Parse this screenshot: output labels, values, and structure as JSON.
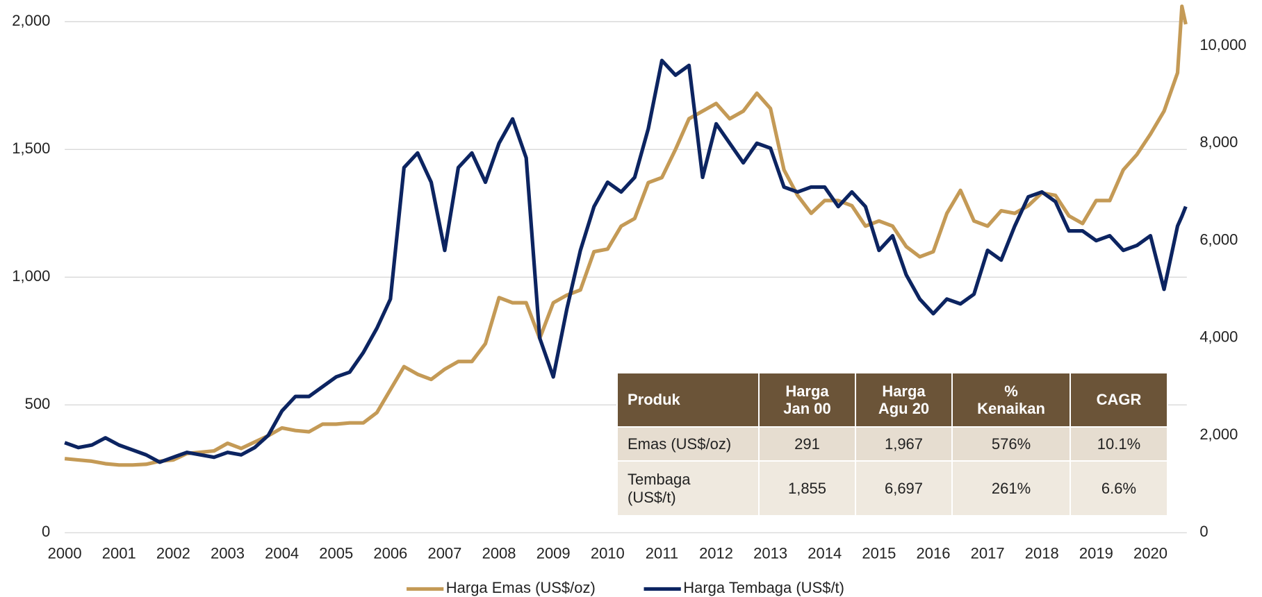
{
  "chart_data": {
    "type": "line",
    "x": [
      2000,
      2000.25,
      2000.5,
      2000.75,
      2001,
      2001.25,
      2001.5,
      2001.75,
      2002,
      2002.25,
      2002.5,
      2002.75,
      2003,
      2003.25,
      2003.5,
      2003.75,
      2004,
      2004.25,
      2004.5,
      2004.75,
      2005,
      2005.25,
      2005.5,
      2005.75,
      2006,
      2006.25,
      2006.5,
      2006.75,
      2007,
      2007.25,
      2007.5,
      2007.75,
      2008,
      2008.25,
      2008.5,
      2008.75,
      2009,
      2009.25,
      2009.5,
      2009.75,
      2010,
      2010.25,
      2010.5,
      2010.75,
      2011,
      2011.25,
      2011.5,
      2011.75,
      2012,
      2012.25,
      2012.5,
      2012.75,
      2013,
      2013.25,
      2013.5,
      2013.75,
      2014,
      2014.25,
      2014.5,
      2014.75,
      2015,
      2015.25,
      2015.5,
      2015.75,
      2016,
      2016.25,
      2016.5,
      2016.75,
      2017,
      2017.25,
      2017.5,
      2017.75,
      2018,
      2018.25,
      2018.5,
      2018.75,
      2019,
      2019.25,
      2019.5,
      2019.75,
      2020,
      2020.25,
      2020.5,
      2020.58,
      2020.65
    ],
    "series": [
      {
        "name": "Harga Emas (US$/oz)",
        "color": "#c49a56",
        "values": [
          290,
          285,
          280,
          270,
          265,
          265,
          268,
          280,
          285,
          310,
          315,
          320,
          350,
          330,
          355,
          380,
          410,
          400,
          395,
          425,
          425,
          430,
          430,
          470,
          560,
          650,
          620,
          600,
          640,
          670,
          670,
          740,
          920,
          900,
          900,
          760,
          900,
          930,
          950,
          1100,
          1110,
          1200,
          1230,
          1370,
          1390,
          1500,
          1620,
          1650,
          1680,
          1620,
          1650,
          1720,
          1660,
          1420,
          1320,
          1250,
          1300,
          1300,
          1280,
          1200,
          1220,
          1200,
          1120,
          1080,
          1100,
          1250,
          1340,
          1220,
          1200,
          1260,
          1250,
          1280,
          1330,
          1320,
          1240,
          1210,
          1300,
          1300,
          1420,
          1480,
          1560,
          1650,
          1800,
          2060,
          1990
        ]
      },
      {
        "name": "Harga Tembaga (US$/t)",
        "color": "#0c2461",
        "axis": "y2",
        "values": [
          1850,
          1750,
          1800,
          1950,
          1800,
          1700,
          1600,
          1450,
          1550,
          1650,
          1600,
          1550,
          1650,
          1600,
          1750,
          2000,
          2500,
          2800,
          2800,
          3000,
          3200,
          3300,
          3700,
          4200,
          4800,
          7500,
          7800,
          7200,
          5800,
          7500,
          7800,
          7200,
          8000,
          8500,
          7700,
          4000,
          3200,
          4600,
          5800,
          6700,
          7200,
          7000,
          7300,
          8300,
          9700,
          9400,
          9600,
          7300,
          8400,
          8000,
          7600,
          8000,
          7900,
          7100,
          7000,
          7100,
          7100,
          6700,
          7000,
          6700,
          5800,
          6100,
          5300,
          4800,
          4500,
          4800,
          4700,
          4900,
          5800,
          5600,
          6300,
          6900,
          7000,
          6800,
          6200,
          6200,
          6000,
          6100,
          5800,
          5900,
          6100,
          5000,
          6300,
          6500,
          6700
        ]
      }
    ],
    "xlim": [
      2000,
      2020.67
    ],
    "xticks": [
      2000,
      2001,
      2002,
      2003,
      2004,
      2005,
      2006,
      2007,
      2008,
      2009,
      2010,
      2011,
      2012,
      2013,
      2014,
      2015,
      2016,
      2017,
      2018,
      2019,
      2020
    ],
    "ylim": [
      0,
      2050
    ],
    "yticks": [
      0,
      {
        "value": 500,
        "label": "500"
      },
      {
        "value": 1000,
        "label": "1,000"
      },
      {
        "value": 1500,
        "label": "1,500"
      },
      {
        "value": 2000,
        "label": "2,000"
      }
    ],
    "y2lim": [
      0,
      10760
    ],
    "y2ticks": [
      0,
      {
        "value": 2000,
        "label": "2,000"
      },
      {
        "value": 4000,
        "label": "4,000"
      },
      {
        "value": 6000,
        "label": "6,000"
      },
      {
        "value": 8000,
        "label": "8,000"
      },
      {
        "value": 10000,
        "label": "10,000"
      }
    ],
    "grid": true,
    "legend": "bottom"
  },
  "table": {
    "header": [
      "Produk",
      "Harga\nJan 00",
      "Harga\nAgu 20",
      "%\nKenaikan",
      "CAGR"
    ],
    "rows": [
      [
        "Emas (US$/oz)",
        "291",
        "1,967",
        "576%",
        "10.1%"
      ],
      [
        "Tembaga\n(US$/t)",
        "1,855",
        "6,697",
        "261%",
        "6.6%"
      ]
    ]
  }
}
